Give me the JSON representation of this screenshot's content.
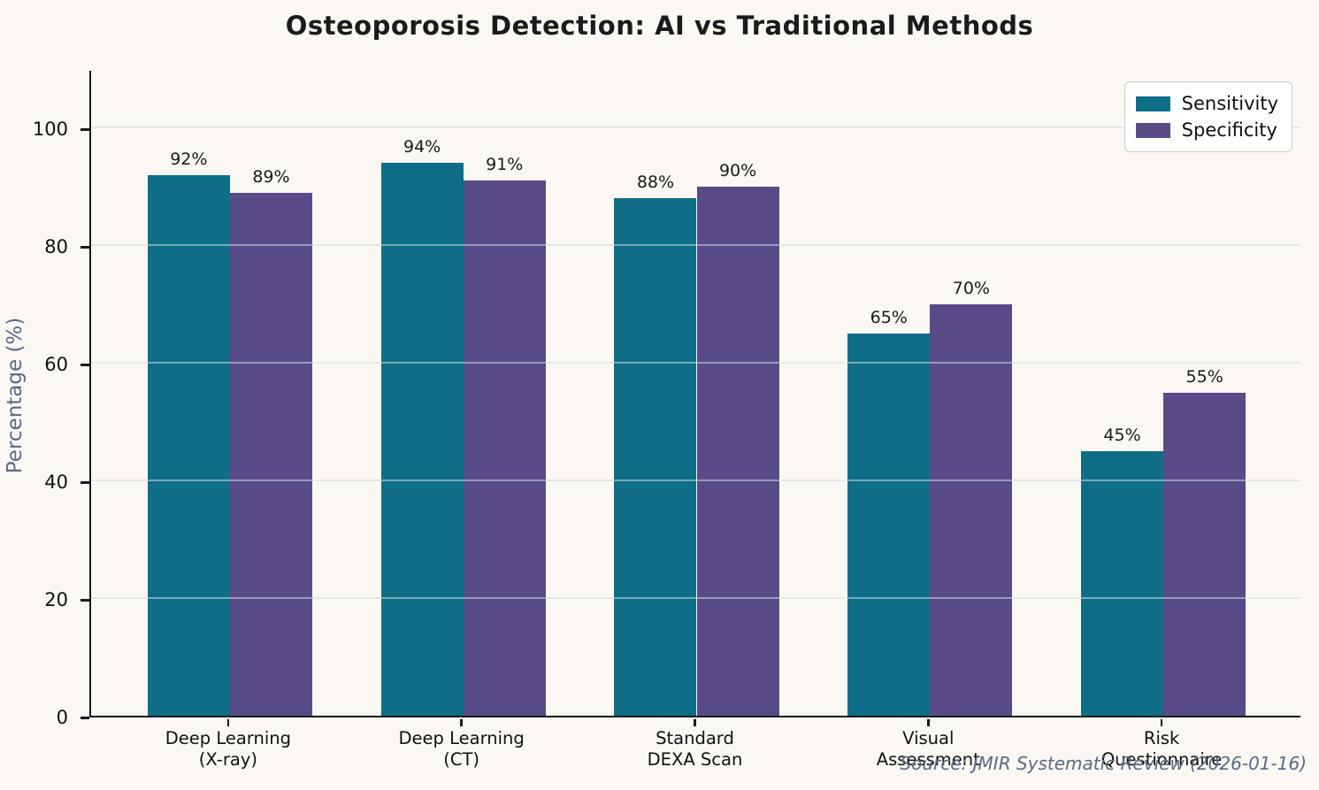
{
  "chart_data": {
    "type": "bar",
    "title": "Osteoporosis Detection: AI vs Traditional Methods",
    "ylabel": "Percentage (%)",
    "categories": [
      "Deep Learning\n(X-ray)",
      "Deep Learning\n(CT)",
      "Standard\nDEXA Scan",
      "Visual\nAssessment",
      "Risk\nQuestionnaire"
    ],
    "series": [
      {
        "name": "Sensitivity",
        "values": [
          92,
          94,
          88,
          65,
          45
        ],
        "color": "#0e6e87"
      },
      {
        "name": "Specificity",
        "values": [
          89,
          91,
          90,
          70,
          55
        ],
        "color": "#594b88"
      }
    ],
    "value_labels": [
      [
        "92%",
        "94%",
        "88%",
        "65%",
        "45%"
      ],
      [
        "89%",
        "91%",
        "90%",
        "70%",
        "55%"
      ]
    ],
    "yticks": [
      0,
      20,
      40,
      60,
      80,
      100
    ],
    "ylim": [
      0,
      110
    ],
    "grid": true,
    "legend_position": "upper right",
    "source": "Source: JMIR Systematic Review (2026-01-16)"
  },
  "colors": {
    "background": "#fbf8f3",
    "grid": "rgba(208,218,228,0.55)",
    "muted_text": "#5a6b85",
    "axis_text": "#111111"
  }
}
